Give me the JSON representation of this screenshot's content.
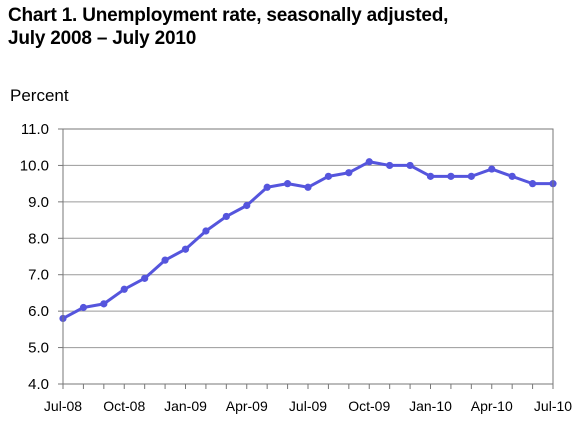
{
  "chart_data": {
    "type": "line",
    "title_line1": "Chart 1. Unemployment rate, seasonally adjusted,",
    "title_line2": "July 2008 – July 2010",
    "ylabel": "Percent",
    "ylim": [
      4.0,
      11.0
    ],
    "yticks": [
      "4.0",
      "5.0",
      "6.0",
      "7.0",
      "8.0",
      "9.0",
      "10.0",
      "11.0"
    ],
    "grid": true,
    "line_color": "#5555dd",
    "x": [
      "Jul-08",
      "Aug-08",
      "Sep-08",
      "Oct-08",
      "Nov-08",
      "Dec-08",
      "Jan-09",
      "Feb-09",
      "Mar-09",
      "Apr-09",
      "May-09",
      "Jun-09",
      "Jul-09",
      "Aug-09",
      "Sep-09",
      "Oct-09",
      "Nov-09",
      "Dec-09",
      "Jan-10",
      "Feb-10",
      "Mar-10",
      "Apr-10",
      "May-10",
      "Jun-10",
      "Jul-10"
    ],
    "xtick_labels": [
      "Jul-08",
      "",
      "",
      "Oct-08",
      "",
      "",
      "Jan-09",
      "",
      "",
      "Apr-09",
      "",
      "",
      "Jul-09",
      "",
      "",
      "Oct-09",
      "",
      "",
      "Jan-10",
      "",
      "",
      "Apr-10",
      "",
      "",
      "Jul-10"
    ],
    "series": [
      {
        "values": [
          5.8,
          6.1,
          6.2,
          6.6,
          6.9,
          7.4,
          7.7,
          8.2,
          8.6,
          8.9,
          9.4,
          9.5,
          9.4,
          9.7,
          9.8,
          10.1,
          10.0,
          10.0,
          9.7,
          9.7,
          9.7,
          9.9,
          9.7,
          9.5,
          9.5
        ]
      }
    ]
  }
}
